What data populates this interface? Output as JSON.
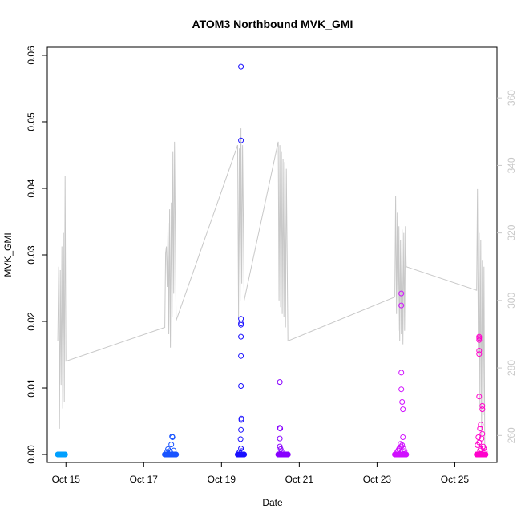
{
  "chart_data": {
    "type": "scatter",
    "title": "ATOM3 Northbound MVK_GMI",
    "xlabel": "Date",
    "ylabel": "MVK_GMI",
    "x_unit": "date",
    "xlim": [
      "2016-10-14T12:30",
      "2016-10-26T02:00"
    ],
    "ylim": [
      -0.0012,
      0.0612
    ],
    "y2lim": [
      252,
      375
    ],
    "x_ticks": [
      {
        "value": "2016-10-15T00:00",
        "label": "Oct 15"
      },
      {
        "value": "2016-10-17T00:00",
        "label": "Oct 17"
      },
      {
        "value": "2016-10-19T00:00",
        "label": "Oct 19"
      },
      {
        "value": "2016-10-21T00:00",
        "label": "Oct 21"
      },
      {
        "value": "2016-10-23T00:00",
        "label": "Oct 23"
      },
      {
        "value": "2016-10-25T00:00",
        "label": "Oct 25"
      }
    ],
    "y_ticks": [
      {
        "value": 0.0,
        "label": "0.00"
      },
      {
        "value": 0.01,
        "label": "0.01"
      },
      {
        "value": 0.02,
        "label": "0.02"
      },
      {
        "value": 0.03,
        "label": "0.03"
      },
      {
        "value": 0.04,
        "label": "0.04"
      },
      {
        "value": 0.05,
        "label": "0.05"
      },
      {
        "value": 0.06,
        "label": "0.06"
      }
    ],
    "y2_ticks": [
      {
        "value": 260,
        "label": "260"
      },
      {
        "value": 280,
        "label": "280"
      },
      {
        "value": 300,
        "label": "300"
      },
      {
        "value": 320,
        "label": "320"
      },
      {
        "value": 340,
        "label": "340"
      },
      {
        "value": 360,
        "label": "360"
      }
    ],
    "grid": false,
    "legend": "none",
    "colors": {
      "background_line": "#c8c8c8",
      "right_axis": "#c8c8c8",
      "flights": [
        "#00a0ff",
        "#1a55ff",
        "#1a10ff",
        "#8800ff",
        "#d010ff",
        "#ff00cc"
      ]
    },
    "background_series": {
      "axis": "right",
      "points": [
        {
          "x": "2016-10-14T19:00",
          "y": 288
        },
        {
          "x": "2016-10-14T19:30",
          "y": 310
        },
        {
          "x": "2016-10-14T20:00",
          "y": 262
        },
        {
          "x": "2016-10-14T20:30",
          "y": 309
        },
        {
          "x": "2016-10-14T21:00",
          "y": 275
        },
        {
          "x": "2016-10-14T21:30",
          "y": 316
        },
        {
          "x": "2016-10-14T22:00",
          "y": 268
        },
        {
          "x": "2016-10-14T22:30",
          "y": 320
        },
        {
          "x": "2016-10-14T23:00",
          "y": 270
        },
        {
          "x": "2016-10-14T23:30",
          "y": 337
        },
        {
          "x": "2016-10-15T00:00",
          "y": 282
        },
        {
          "x": "2016-10-17T13:00",
          "y": 292
        },
        {
          "x": "2016-10-17T13:30",
          "y": 314
        },
        {
          "x": "2016-10-17T14:00",
          "y": 316
        },
        {
          "x": "2016-10-17T14:30",
          "y": 304
        },
        {
          "x": "2016-10-17T15:00",
          "y": 323
        },
        {
          "x": "2016-10-17T15:30",
          "y": 290
        },
        {
          "x": "2016-10-17T16:00",
          "y": 327
        },
        {
          "x": "2016-10-17T16:30",
          "y": 286
        },
        {
          "x": "2016-10-17T17:00",
          "y": 329
        },
        {
          "x": "2016-10-17T17:30",
          "y": 295
        },
        {
          "x": "2016-10-17T18:00",
          "y": 344
        },
        {
          "x": "2016-10-17T18:30",
          "y": 302
        },
        {
          "x": "2016-10-17T19:00",
          "y": 347
        },
        {
          "x": "2016-10-17T20:00",
          "y": 294
        },
        {
          "x": "2016-10-19T10:00",
          "y": 346
        },
        {
          "x": "2016-10-19T10:30",
          "y": 295
        },
        {
          "x": "2016-10-19T11:00",
          "y": 345
        },
        {
          "x": "2016-10-19T11:30",
          "y": 300
        },
        {
          "x": "2016-10-19T12:00",
          "y": 351
        },
        {
          "x": "2016-10-19T12:30",
          "y": 305
        },
        {
          "x": "2016-10-19T13:00",
          "y": 346
        },
        {
          "x": "2016-10-19T14:00",
          "y": 300
        },
        {
          "x": "2016-10-20T11:00",
          "y": 347
        },
        {
          "x": "2016-10-20T11:30",
          "y": 300
        },
        {
          "x": "2016-10-20T12:00",
          "y": 346
        },
        {
          "x": "2016-10-20T12:30",
          "y": 298
        },
        {
          "x": "2016-10-20T13:00",
          "y": 344
        },
        {
          "x": "2016-10-20T13:30",
          "y": 296
        },
        {
          "x": "2016-10-20T14:00",
          "y": 342
        },
        {
          "x": "2016-10-20T14:30",
          "y": 295
        },
        {
          "x": "2016-10-20T15:00",
          "y": 341
        },
        {
          "x": "2016-10-20T15:30",
          "y": 292
        },
        {
          "x": "2016-10-20T16:00",
          "y": 339
        },
        {
          "x": "2016-10-20T17:00",
          "y": 288
        },
        {
          "x": "2016-10-23T11:00",
          "y": 301
        },
        {
          "x": "2016-10-23T11:30",
          "y": 331
        },
        {
          "x": "2016-10-23T12:00",
          "y": 296
        },
        {
          "x": "2016-10-23T12:30",
          "y": 326
        },
        {
          "x": "2016-10-23T13:00",
          "y": 291
        },
        {
          "x": "2016-10-23T13:30",
          "y": 322
        },
        {
          "x": "2016-10-23T14:00",
          "y": 288
        },
        {
          "x": "2016-10-23T14:30",
          "y": 318
        },
        {
          "x": "2016-10-23T15:00",
          "y": 290
        },
        {
          "x": "2016-10-23T15:30",
          "y": 321
        },
        {
          "x": "2016-10-23T16:00",
          "y": 287
        },
        {
          "x": "2016-10-23T16:30",
          "y": 320
        },
        {
          "x": "2016-10-23T17:00",
          "y": 291
        },
        {
          "x": "2016-10-23T17:30",
          "y": 322
        },
        {
          "x": "2016-10-23T18:00",
          "y": 310
        },
        {
          "x": "2016-10-25T13:30",
          "y": 303
        },
        {
          "x": "2016-10-25T14:00",
          "y": 333
        },
        {
          "x": "2016-10-25T14:30",
          "y": 284
        },
        {
          "x": "2016-10-25T15:00",
          "y": 320
        },
        {
          "x": "2016-10-25T15:30",
          "y": 268
        },
        {
          "x": "2016-10-25T16:00",
          "y": 318
        },
        {
          "x": "2016-10-25T16:30",
          "y": 260
        },
        {
          "x": "2016-10-25T17:00",
          "y": 312
        },
        {
          "x": "2016-10-25T17:30",
          "y": 266
        },
        {
          "x": "2016-10-25T18:00",
          "y": 310
        },
        {
          "x": "2016-10-25T18:30",
          "y": 256
        }
      ]
    },
    "flights": [
      {
        "color_index": 0,
        "x_start": "2016-10-14T19:00",
        "x_end": "2016-10-14T23:30",
        "baseline_count": 22,
        "baseline_y": 0.0,
        "points": []
      },
      {
        "color_index": 1,
        "x_start": "2016-10-17T13:00",
        "x_end": "2016-10-17T20:00",
        "baseline_count": 34,
        "baseline_y": 0.0,
        "points": [
          {
            "x": "2016-10-17T17:30",
            "y": 0.0027
          },
          {
            "x": "2016-10-17T17:45",
            "y": 0.0026
          },
          {
            "x": "2016-10-17T17:00",
            "y": 0.0015
          },
          {
            "x": "2016-10-17T15:00",
            "y": 0.0008
          },
          {
            "x": "2016-10-17T16:00",
            "y": 0.0005
          },
          {
            "x": "2016-10-17T14:30",
            "y": 0.0004
          },
          {
            "x": "2016-10-17T18:30",
            "y": 0.0006
          },
          {
            "x": "2016-10-17T16:30",
            "y": 0.0003
          }
        ]
      },
      {
        "color_index": 2,
        "x_start": "2016-10-19T10:00",
        "x_end": "2016-10-19T14:00",
        "baseline_count": 28,
        "baseline_y": 0.0,
        "points": [
          {
            "x": "2016-10-19T12:00",
            "y": 0.0583
          },
          {
            "x": "2016-10-19T12:00",
            "y": 0.0472
          },
          {
            "x": "2016-10-19T12:00",
            "y": 0.0204
          },
          {
            "x": "2016-10-19T12:00",
            "y": 0.0197
          },
          {
            "x": "2016-10-19T12:00",
            "y": 0.0195
          },
          {
            "x": "2016-10-19T12:00",
            "y": 0.0177
          },
          {
            "x": "2016-10-19T12:00",
            "y": 0.0148
          },
          {
            "x": "2016-10-19T12:00",
            "y": 0.0103
          },
          {
            "x": "2016-10-19T12:15",
            "y": 0.0054
          },
          {
            "x": "2016-10-19T12:15",
            "y": 0.0052
          },
          {
            "x": "2016-10-19T12:00",
            "y": 0.0037
          },
          {
            "x": "2016-10-19T11:45",
            "y": 0.0023
          },
          {
            "x": "2016-10-19T12:00",
            "y": 0.0009
          },
          {
            "x": "2016-10-19T12:30",
            "y": 0.0005
          },
          {
            "x": "2016-10-19T11:00",
            "y": 0.0003
          }
        ]
      },
      {
        "color_index": 3,
        "x_start": "2016-10-20T11:00",
        "x_end": "2016-10-20T17:00",
        "baseline_count": 30,
        "baseline_y": 0.0,
        "points": [
          {
            "x": "2016-10-20T12:00",
            "y": 0.0109
          },
          {
            "x": "2016-10-20T12:00",
            "y": 0.004
          },
          {
            "x": "2016-10-20T12:15",
            "y": 0.0039
          },
          {
            "x": "2016-10-20T12:00",
            "y": 0.0024
          },
          {
            "x": "2016-10-20T12:00",
            "y": 0.0012
          },
          {
            "x": "2016-10-20T12:30",
            "y": 0.0008
          },
          {
            "x": "2016-10-20T13:00",
            "y": 0.0005
          }
        ]
      },
      {
        "color_index": 4,
        "x_start": "2016-10-23T11:00",
        "x_end": "2016-10-23T18:00",
        "baseline_count": 40,
        "baseline_y": 0.0,
        "points": [
          {
            "x": "2016-10-23T15:00",
            "y": 0.0242
          },
          {
            "x": "2016-10-23T15:00",
            "y": 0.0224
          },
          {
            "x": "2016-10-23T15:00",
            "y": 0.0123
          },
          {
            "x": "2016-10-23T15:00",
            "y": 0.0098
          },
          {
            "x": "2016-10-23T15:30",
            "y": 0.0079
          },
          {
            "x": "2016-10-23T16:00",
            "y": 0.0068
          },
          {
            "x": "2016-10-23T16:00",
            "y": 0.0026
          },
          {
            "x": "2016-10-23T14:30",
            "y": 0.0016
          },
          {
            "x": "2016-10-23T15:00",
            "y": 0.0012
          },
          {
            "x": "2016-10-23T14:00",
            "y": 0.001
          },
          {
            "x": "2016-10-23T13:30",
            "y": 0.0008
          },
          {
            "x": "2016-10-23T16:30",
            "y": 0.0008
          },
          {
            "x": "2016-10-23T13:00",
            "y": 0.0006
          },
          {
            "x": "2016-10-23T17:00",
            "y": 0.0005
          },
          {
            "x": "2016-10-23T12:30",
            "y": 0.0004
          },
          {
            "x": "2016-10-23T15:30",
            "y": 0.0014
          }
        ]
      },
      {
        "color_index": 5,
        "x_start": "2016-10-25T13:30",
        "x_end": "2016-10-25T19:00",
        "baseline_count": 36,
        "baseline_y": 0.0,
        "points": [
          {
            "x": "2016-10-25T15:00",
            "y": 0.0177
          },
          {
            "x": "2016-10-25T15:00",
            "y": 0.0175
          },
          {
            "x": "2016-10-25T15:00",
            "y": 0.0172
          },
          {
            "x": "2016-10-25T15:00",
            "y": 0.0156
          },
          {
            "x": "2016-10-25T15:00",
            "y": 0.0151
          },
          {
            "x": "2016-10-25T15:00",
            "y": 0.0087
          },
          {
            "x": "2016-10-25T17:00",
            "y": 0.0073
          },
          {
            "x": "2016-10-25T17:00",
            "y": 0.0068
          },
          {
            "x": "2016-10-25T16:00",
            "y": 0.0045
          },
          {
            "x": "2016-10-25T15:30",
            "y": 0.0039
          },
          {
            "x": "2016-10-25T17:00",
            "y": 0.0031
          },
          {
            "x": "2016-10-25T14:30",
            "y": 0.0026
          },
          {
            "x": "2016-10-25T16:30",
            "y": 0.0024
          },
          {
            "x": "2016-10-25T15:00",
            "y": 0.0018
          },
          {
            "x": "2016-10-25T14:00",
            "y": 0.0014
          },
          {
            "x": "2016-10-25T17:30",
            "y": 0.0012
          },
          {
            "x": "2016-10-25T18:00",
            "y": 0.0009
          },
          {
            "x": "2016-10-25T16:00",
            "y": 0.0008
          },
          {
            "x": "2016-10-25T15:30",
            "y": 0.0006
          },
          {
            "x": "2016-10-25T18:30",
            "y": 0.0004
          }
        ]
      }
    ]
  }
}
